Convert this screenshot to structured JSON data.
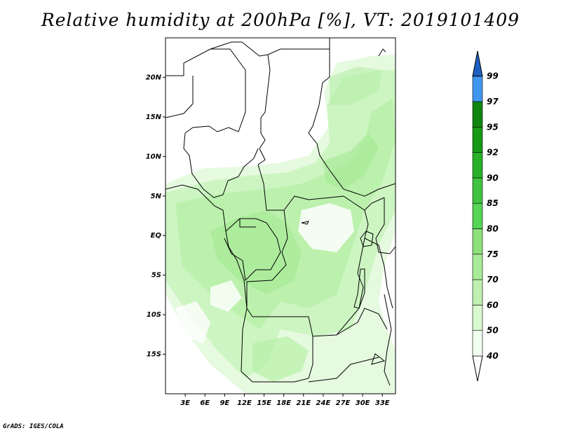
{
  "title": "Relative humidity at 200hPa [%], VT: 2019101409",
  "footer": "GrADS: IGES/COLA",
  "map": {
    "lon_range": [
      0,
      35
    ],
    "lat_range": [
      -20,
      25
    ],
    "lat_ticks": [
      {
        "value": 20,
        "label": "20N"
      },
      {
        "value": 15,
        "label": "15N"
      },
      {
        "value": 10,
        "label": "10N"
      },
      {
        "value": 5,
        "label": "5N"
      },
      {
        "value": 0,
        "label": "EQ"
      },
      {
        "value": -5,
        "label": "5S"
      },
      {
        "value": -10,
        "label": "10S"
      },
      {
        "value": -15,
        "label": "15S"
      }
    ],
    "lon_ticks": [
      {
        "value": 3,
        "label": "3E"
      },
      {
        "value": 6,
        "label": "6E"
      },
      {
        "value": 9,
        "label": "9E"
      },
      {
        "value": 12,
        "label": "12E"
      },
      {
        "value": 15,
        "label": "15E"
      },
      {
        "value": 18,
        "label": "18E"
      },
      {
        "value": 21,
        "label": "21E"
      },
      {
        "value": 24,
        "label": "24E"
      },
      {
        "value": 27,
        "label": "27E"
      },
      {
        "value": 30,
        "label": "30E"
      },
      {
        "value": 33,
        "label": "33E"
      }
    ]
  },
  "colorbar": {
    "levels": [
      {
        "label": "40",
        "color": "#f0fff0"
      },
      {
        "label": "50",
        "color": "#d8f8d0"
      },
      {
        "label": "60",
        "color": "#c0f0b0"
      },
      {
        "label": "70",
        "color": "#a8eb98"
      },
      {
        "label": "75",
        "color": "#8ee07a"
      },
      {
        "label": "80",
        "color": "#55d455"
      },
      {
        "label": "85",
        "color": "#40c340"
      },
      {
        "label": "90",
        "color": "#28b028"
      },
      {
        "label": "92",
        "color": "#169a16"
      },
      {
        "label": "95",
        "color": "#108610"
      },
      {
        "label": "97",
        "color": "#4196ee"
      },
      {
        "label": "99",
        "color": "#2d6ed2"
      }
    ],
    "top_color": "#1e5fc0",
    "bottom_color": "#ffffff"
  }
}
